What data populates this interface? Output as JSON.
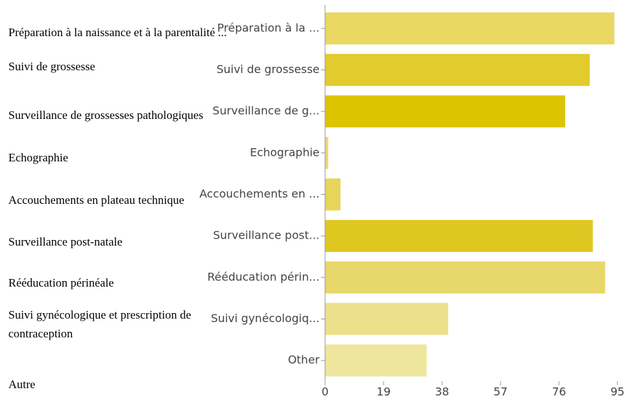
{
  "chart_data": {
    "type": "hbar",
    "categories": [
      "Préparation à la ...",
      "Suivi de grossesse",
      "Surveillance de g...",
      "Echographie",
      "Accouchements en ...",
      "Surveillance post...",
      "Rééducation périn...",
      "Suivi gynécologiq...",
      "Other"
    ],
    "categories_full": [
      "Préparation à la naissance et à la parentalité ...",
      "Suivi de grossesse",
      "Surveillance de grossesses pathologiques",
      "Echographie",
      "Accouchements en plateau technique",
      "Surveillance post-natale",
      "Rééducation périnéale",
      "Suivi gynécologique et prescription de\ncontraception",
      "Autre"
    ],
    "values": [
      94,
      86,
      78,
      1,
      5,
      87,
      91,
      40,
      33
    ],
    "colors": [
      "#e9d862",
      "#e2cb2c",
      "#dcc400",
      "#e9d870",
      "#e6d55a",
      "#dfc722",
      "#e8d76a",
      "#ece08c",
      "#eee69c"
    ],
    "xlim": [
      0,
      95
    ],
    "xticks": [
      0,
      19,
      38,
      57,
      76,
      95
    ]
  }
}
